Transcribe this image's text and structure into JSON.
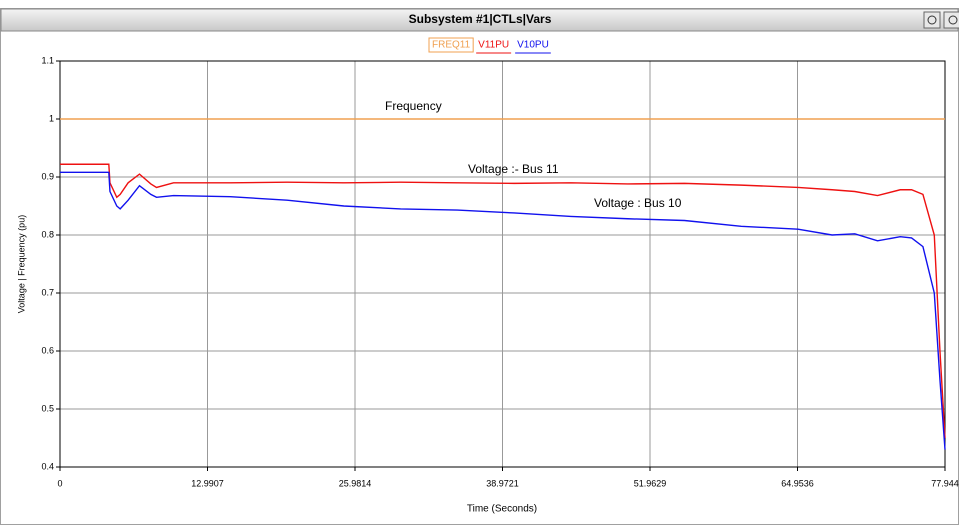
{
  "chart_data": {
    "type": "line",
    "title": "Subsystem #1|CTLs|Vars",
    "xlabel": "Time (Seconds)",
    "ylabel": "Voltage | Frequency (pu)",
    "annotations": [
      "Frequency",
      "Voltage :- Bus 11",
      "Voltage : Bus 10"
    ],
    "x": [
      0,
      4.3,
      4.4,
      5.0,
      5.3,
      6.0,
      7.0,
      8.0,
      8.5,
      10,
      15,
      20,
      25,
      30,
      35,
      40,
      45,
      50,
      55,
      60,
      65,
      68,
      70,
      72,
      74,
      75,
      76,
      77,
      77.5,
      77.944
    ],
    "series": [
      {
        "name": "FREQ11",
        "color": "#f0a050",
        "values": [
          1,
          1,
          1,
          1,
          1,
          1,
          1,
          1,
          1,
          1,
          1,
          1,
          1,
          1,
          1,
          1,
          1,
          1,
          1,
          1,
          1,
          1,
          1,
          1,
          1,
          1,
          1,
          1,
          1,
          1
        ]
      },
      {
        "name": "V11PU",
        "color": "#ee1111",
        "values": [
          0.922,
          0.922,
          0.89,
          0.865,
          0.87,
          0.89,
          0.905,
          0.888,
          0.882,
          0.89,
          0.89,
          0.891,
          0.89,
          0.891,
          0.89,
          0.889,
          0.89,
          0.888,
          0.889,
          0.886,
          0.882,
          0.878,
          0.875,
          0.868,
          0.878,
          0.878,
          0.87,
          0.8,
          0.6,
          0.45
        ]
      },
      {
        "name": "V10PU",
        "color": "#1111ee",
        "values": [
          0.908,
          0.908,
          0.875,
          0.85,
          0.845,
          0.86,
          0.885,
          0.87,
          0.865,
          0.868,
          0.866,
          0.86,
          0.85,
          0.845,
          0.843,
          0.838,
          0.832,
          0.828,
          0.825,
          0.815,
          0.81,
          0.8,
          0.802,
          0.79,
          0.797,
          0.795,
          0.78,
          0.7,
          0.55,
          0.43
        ]
      }
    ],
    "xlim": [
      0,
      77.944
    ],
    "xticks": [
      0,
      12.9907,
      25.9814,
      38.9721,
      51.9629,
      64.9536,
      77.944
    ],
    "ylim": [
      0.4,
      1.1
    ],
    "yticks": [
      0.4,
      0.5,
      0.6,
      0.7,
      0.8,
      0.9,
      1,
      1.1
    ],
    "grid": true
  }
}
